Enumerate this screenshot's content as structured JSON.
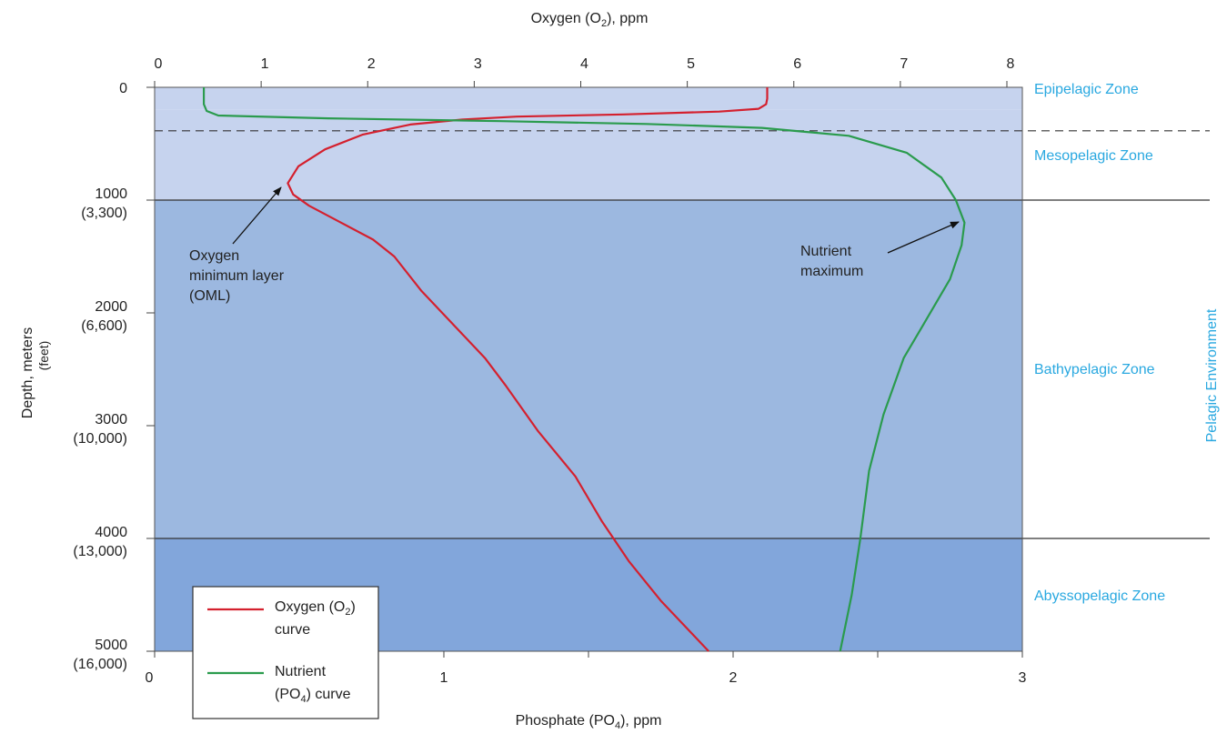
{
  "chart_data": {
    "type": "line",
    "top_axis": {
      "label_pre": "Oxygen (O",
      "label_sub": "2",
      "label_post": "), ppm",
      "range": [
        0,
        8.5
      ],
      "ticks": [
        0,
        1,
        2,
        3,
        4,
        5,
        6,
        7,
        8
      ]
    },
    "bottom_axis": {
      "label_pre": "Phosphate (PO",
      "label_sub": "4",
      "label_post": "), ppm",
      "range": [
        0,
        3
      ],
      "ticks": [
        0,
        0.5,
        1,
        1.5,
        2,
        2.5,
        3
      ],
      "tick_labels": [
        "0",
        "",
        "1",
        "",
        "2",
        "",
        "3"
      ]
    },
    "y_axis": {
      "label": "Depth, meters",
      "sublabel": "(feet)",
      "range": [
        0,
        5000
      ],
      "inverted": true,
      "ticks": [
        {
          "value": 0,
          "m": "0",
          "ft": ""
        },
        {
          "value": 1000,
          "m": "1000",
          "ft": "(3,300)"
        },
        {
          "value": 2000,
          "m": "2000",
          "ft": "(6,600)"
        },
        {
          "value": 3000,
          "m": "3000",
          "ft": "(10,000)"
        },
        {
          "value": 4000,
          "m": "4000",
          "ft": "(13,000)"
        },
        {
          "value": 5000,
          "m": "5000",
          "ft": "(16,000)"
        }
      ]
    },
    "zones": [
      {
        "name": "Epipelagic Zone",
        "top": 0,
        "bottom": 200,
        "color": "#c6d3ee"
      },
      {
        "name": "Mesopelagic Zone",
        "top": 200,
        "bottom": 1000,
        "color": "#c6d3ee"
      },
      {
        "name": "Bathypelagic Zone",
        "top": 1000,
        "bottom": 4000,
        "color": "#9cb8e0"
      },
      {
        "name": "Abyssopelagic Zone",
        "top": 4000,
        "bottom": 5000,
        "color": "#82a6db"
      }
    ],
    "boundary_lines": [
      {
        "depth": 200,
        "style": "dashed"
      },
      {
        "depth": 1000,
        "style": "solid"
      },
      {
        "depth": 4000,
        "style": "solid"
      }
    ],
    "environment_label": "Pelagic Environment",
    "series": [
      {
        "name_pre": "Oxygen (O",
        "name_sub": "2",
        "name_post": ")",
        "name_line2": "curve",
        "color": "#d4202e",
        "axis": "top",
        "points": [
          [
            5.75,
            0
          ],
          [
            5.75,
            100
          ],
          [
            5.74,
            150
          ],
          [
            5.67,
            190
          ],
          [
            5.3,
            215
          ],
          [
            4.4,
            240
          ],
          [
            3.4,
            260
          ],
          [
            2.9,
            285
          ],
          [
            2.4,
            330
          ],
          [
            1.95,
            420
          ],
          [
            1.6,
            550
          ],
          [
            1.35,
            700
          ],
          [
            1.25,
            850
          ],
          [
            1.3,
            950
          ],
          [
            1.45,
            1050
          ],
          [
            1.75,
            1200
          ],
          [
            2.05,
            1350
          ],
          [
            2.25,
            1500
          ],
          [
            2.5,
            1800
          ],
          [
            2.85,
            2150
          ],
          [
            3.1,
            2400
          ],
          [
            3.3,
            2650
          ],
          [
            3.6,
            3050
          ],
          [
            3.95,
            3450
          ],
          [
            4.2,
            3850
          ],
          [
            4.45,
            4200
          ],
          [
            4.75,
            4550
          ],
          [
            5.05,
            4850
          ],
          [
            5.2,
            5000
          ]
        ]
      },
      {
        "name_pre": "Nutrient",
        "name_sub": "",
        "name_post": "",
        "name_line2_pre": "(PO",
        "name_line2_sub": "4",
        "name_line2_post": ") curve",
        "color": "#2a9b4d",
        "axis": "bottom",
        "points": [
          [
            0.17,
            0
          ],
          [
            0.17,
            150
          ],
          [
            0.18,
            210
          ],
          [
            0.22,
            250
          ],
          [
            0.6,
            275
          ],
          [
            1.2,
            300
          ],
          [
            1.7,
            325
          ],
          [
            2.1,
            360
          ],
          [
            2.4,
            430
          ],
          [
            2.6,
            580
          ],
          [
            2.72,
            800
          ],
          [
            2.77,
            1000
          ],
          [
            2.8,
            1200
          ],
          [
            2.79,
            1400
          ],
          [
            2.75,
            1700
          ],
          [
            2.67,
            2050
          ],
          [
            2.59,
            2400
          ],
          [
            2.52,
            2900
          ],
          [
            2.47,
            3400
          ],
          [
            2.44,
            4000
          ],
          [
            2.41,
            4500
          ],
          [
            2.37,
            5000
          ]
        ]
      }
    ],
    "annotations": [
      {
        "lines": [
          "Oxygen",
          "minimum layer",
          "(OML)"
        ]
      },
      {
        "lines": [
          "Nutrient",
          "maximum"
        ]
      }
    ]
  }
}
